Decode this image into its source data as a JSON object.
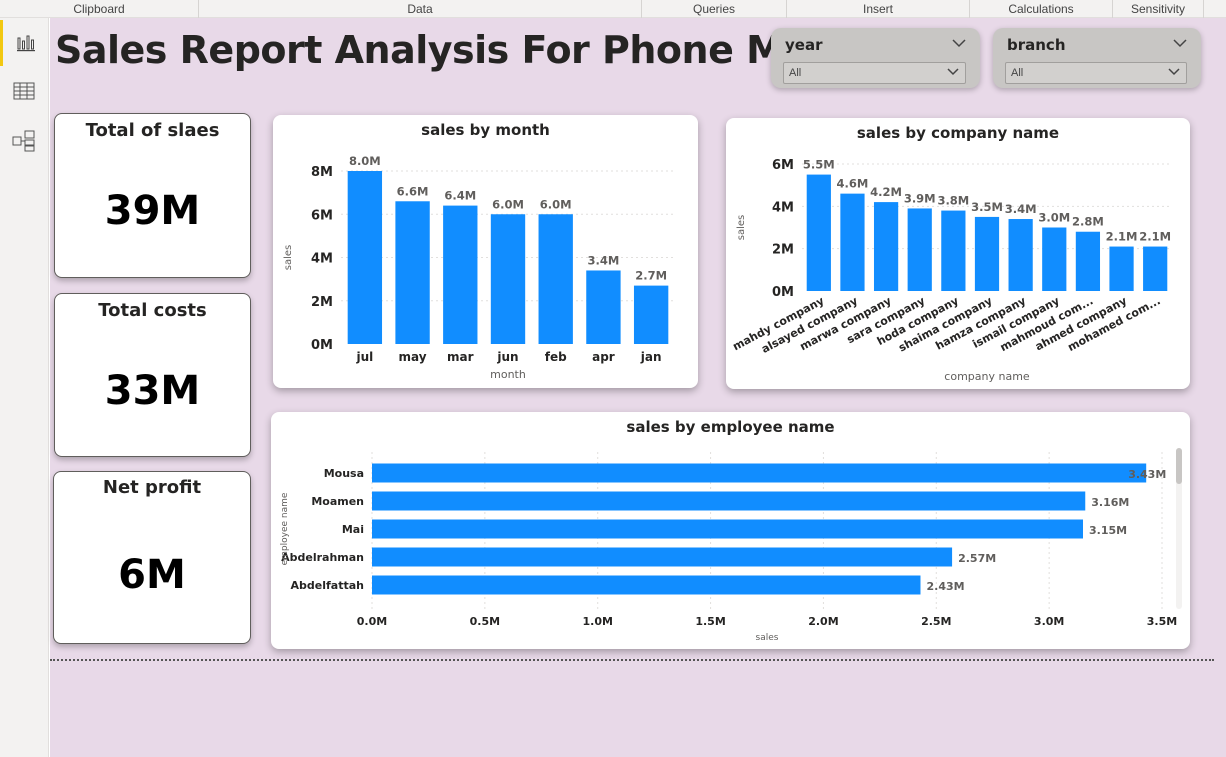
{
  "ribbon": {
    "groups": [
      {
        "label": "Clipboard",
        "width": 199
      },
      {
        "label": "Data",
        "width": 443
      },
      {
        "label": "Queries",
        "width": 145
      },
      {
        "label": "Insert",
        "width": 183
      },
      {
        "label": "Calculations",
        "width": 143
      },
      {
        "label": "Sensitivity",
        "width": 91
      }
    ]
  },
  "nav": {
    "report_icon": "bar-chart-icon",
    "data_icon": "table-icon",
    "model_icon": "model-icon"
  },
  "report": {
    "title": "Sales Report Analysis For Phone Market"
  },
  "slicers": {
    "year": {
      "label": "year",
      "value": "All"
    },
    "branch": {
      "label": "branch",
      "value": "All"
    }
  },
  "kpis": {
    "sales": {
      "label": "Total of slaes",
      "value": "39M"
    },
    "costs": {
      "label": "Total costs",
      "value": "33M"
    },
    "profit": {
      "label": "Net profit",
      "value": "6M"
    }
  },
  "colors": {
    "bar": "#118dff",
    "canvas": "#e8d9e8"
  },
  "chart_data": [
    {
      "type": "bar",
      "title": "sales by month",
      "xlabel": "month",
      "ylabel": "sales",
      "categories": [
        "jul",
        "may",
        "mar",
        "jun",
        "feb",
        "apr",
        "jan"
      ],
      "values": [
        8.0,
        6.6,
        6.4,
        6.0,
        6.0,
        3.4,
        2.7
      ],
      "labels": [
        "8.0M",
        "6.6M",
        "6.4M",
        "6.0M",
        "6.0M",
        "3.4M",
        "2.7M"
      ],
      "yticks": [
        "0M",
        "2M",
        "4M",
        "6M",
        "8M"
      ],
      "ylim": [
        0,
        8
      ],
      "grid": true
    },
    {
      "type": "bar",
      "title": "sales by company name",
      "xlabel": "company name",
      "ylabel": "sales",
      "categories": [
        "mahdy company",
        "alsayed company",
        "marwa company",
        "sara company",
        "hoda company",
        "shaima company",
        "hamza company",
        "ismail company",
        "mahmoud com...",
        "ahmed company",
        "mohamed com..."
      ],
      "values": [
        5.5,
        4.6,
        4.2,
        3.9,
        3.8,
        3.5,
        3.4,
        3.0,
        2.8,
        2.1,
        2.1
      ],
      "labels": [
        "5.5M",
        "4.6M",
        "4.2M",
        "3.9M",
        "3.8M",
        "3.5M",
        "3.4M",
        "3.0M",
        "2.8M",
        "2.1M",
        "2.1M"
      ],
      "yticks": [
        "0M",
        "2M",
        "4M",
        "6M"
      ],
      "ylim": [
        0,
        6
      ],
      "grid": true
    },
    {
      "type": "bar",
      "orientation": "horizontal",
      "title": "sales by employee name",
      "xlabel": "sales",
      "ylabel": "employee name",
      "categories": [
        "Mousa",
        "Moamen",
        "Mai",
        "Abdelrahman",
        "Abdelfattah"
      ],
      "values": [
        3.43,
        3.16,
        3.15,
        2.57,
        2.43
      ],
      "labels": [
        "3.43M",
        "3.16M",
        "3.15M",
        "2.57M",
        "2.43M"
      ],
      "xticks": [
        "0.0M",
        "0.5M",
        "1.0M",
        "1.5M",
        "2.0M",
        "2.5M",
        "3.0M",
        "3.5M"
      ],
      "xlim": [
        0,
        3.5
      ],
      "grid": true
    }
  ]
}
